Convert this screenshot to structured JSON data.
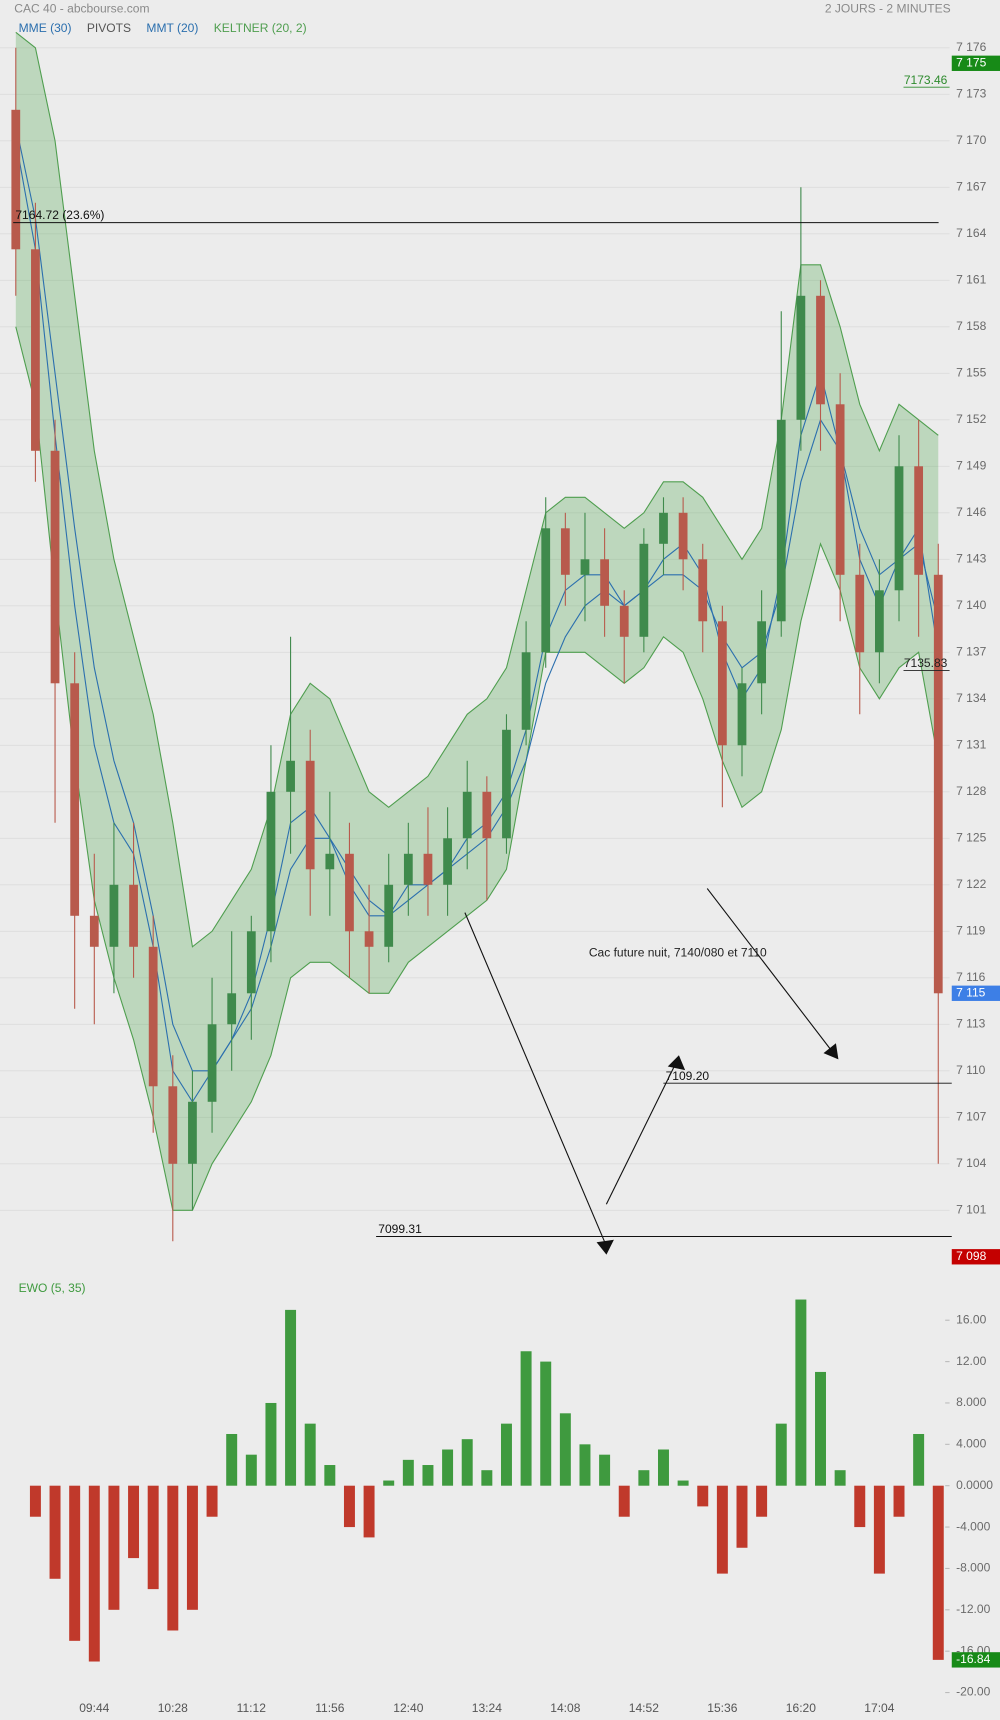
{
  "header": {
    "title": "CAC 40 - abcbourse.com",
    "timeframe": "2 JOURS - 2 MINUTES"
  },
  "chart_data": [
    {
      "type": "candlestick",
      "categories": [
        null,
        null,
        null,
        null,
        "09:44",
        null,
        null,
        null,
        "10:28",
        null,
        null,
        null,
        "11:12",
        null,
        null,
        null,
        "11:56",
        null,
        null,
        null,
        "12:40",
        null,
        null,
        null,
        "13:24",
        null,
        null,
        null,
        "14:08",
        null,
        null,
        null,
        "14:52",
        null,
        null,
        null,
        "15:36",
        null,
        null,
        null,
        "16:20",
        null,
        null,
        null,
        "17:04",
        null,
        null,
        null
      ],
      "open": [
        7172,
        7163,
        7150,
        7135,
        7120,
        7118,
        7122,
        7118,
        7109,
        7104,
        7108,
        7113,
        7115,
        7119,
        7128,
        7130,
        7123,
        7124,
        7119,
        7118,
        7122,
        7124,
        7122,
        7125,
        7128,
        7125,
        7132,
        7137,
        7145,
        7142,
        7143,
        7140,
        7138,
        7144,
        7146,
        7143,
        7139,
        7131,
        7135,
        7139,
        7152,
        7160,
        7153,
        7142,
        7137,
        7141,
        7149,
        7142
      ],
      "high": [
        7176,
        7166,
        7152,
        7137,
        7124,
        7126,
        7126,
        7120,
        7111,
        7110,
        7116,
        7119,
        7120,
        7131,
        7138,
        7132,
        7128,
        7126,
        7122,
        7124,
        7126,
        7127,
        7127,
        7130,
        7129,
        7133,
        7139,
        7147,
        7146,
        7146,
        7145,
        7141,
        7145,
        7147,
        7147,
        7144,
        7140,
        7136,
        7141,
        7159,
        7167,
        7161,
        7155,
        7144,
        7143,
        7151,
        7152,
        7144
      ],
      "low": [
        7160,
        7148,
        7126,
        7114,
        7113,
        7115,
        7116,
        7106,
        7099,
        7101,
        7106,
        7110,
        7112,
        7117,
        7124,
        7120,
        7120,
        7116,
        7115,
        7117,
        7120,
        7120,
        7120,
        7123,
        7121,
        7124,
        7131,
        7136,
        7140,
        7139,
        7138,
        7135,
        7137,
        7142,
        7141,
        7137,
        7127,
        7129,
        7133,
        7138,
        7150,
        7150,
        7139,
        7133,
        7135,
        7139,
        7138,
        7104
      ],
      "close": [
        7163,
        7150,
        7135,
        7120,
        7118,
        7122,
        7118,
        7109,
        7104,
        7108,
        7113,
        7115,
        7119,
        7128,
        7130,
        7123,
        7124,
        7119,
        7118,
        7122,
        7124,
        7122,
        7125,
        7128,
        7125,
        7132,
        7137,
        7145,
        7142,
        7143,
        7140,
        7138,
        7144,
        7146,
        7143,
        7139,
        7131,
        7135,
        7139,
        7152,
        7160,
        7153,
        7142,
        7137,
        7141,
        7149,
        7142,
        7115
      ],
      "up_color": "#3f8a4c",
      "down_color": "#b85a4c",
      "series": [
        {
          "name": "MME (30)",
          "color": "#2b6fae",
          "values": [
            7171,
            7165,
            7155,
            7145,
            7136,
            7130,
            7126,
            7120,
            7113,
            7110,
            7110,
            7112,
            7114,
            7118,
            7123,
            7125,
            7125,
            7123,
            7121,
            7120,
            7121,
            7122,
            7123,
            7124,
            7125,
            7127,
            7130,
            7135,
            7138,
            7140,
            7141,
            7140,
            7141,
            7142,
            7142,
            7141,
            7138,
            7136,
            7137,
            7141,
            7148,
            7152,
            7150,
            7145,
            7142,
            7143,
            7144,
            7139
          ]
        },
        {
          "name": "PIVOTS",
          "color": "#555555"
        },
        {
          "name": "MMT (20)",
          "color": "#2b6fae",
          "values": [
            7170,
            7163,
            7151,
            7140,
            7131,
            7126,
            7124,
            7118,
            7110,
            7108,
            7110,
            7112,
            7115,
            7120,
            7126,
            7127,
            7125,
            7122,
            7120,
            7120,
            7122,
            7122,
            7123,
            7125,
            7126,
            7128,
            7132,
            7138,
            7141,
            7142,
            7142,
            7140,
            7141,
            7143,
            7144,
            7142,
            7137,
            7134,
            7136,
            7142,
            7151,
            7155,
            7150,
            7143,
            7140,
            7143,
            7145,
            7137
          ]
        },
        {
          "name": "KELTNER (20, 2)",
          "color": "#4f9e4f",
          "fill": "rgba(80,165,80,0.30)",
          "upper": [
            7177,
            7176,
            7170,
            7160,
            7150,
            7143,
            7138,
            7133,
            7126,
            7118,
            7119,
            7121,
            7123,
            7127,
            7133,
            7135,
            7134,
            7131,
            7128,
            7127,
            7128,
            7129,
            7131,
            7133,
            7134,
            7136,
            7141,
            7146,
            7147,
            7147,
            7146,
            7145,
            7146,
            7148,
            7148,
            7147,
            7145,
            7143,
            7145,
            7152,
            7162,
            7162,
            7158,
            7153,
            7150,
            7153,
            7152,
            7151
          ],
          "lower": [
            7158,
            7153,
            7141,
            7130,
            7121,
            7116,
            7112,
            7107,
            7101,
            7101,
            7104,
            7106,
            7108,
            7111,
            7116,
            7117,
            7117,
            7116,
            7115,
            7115,
            7117,
            7118,
            7119,
            7120,
            7121,
            7123,
            7130,
            7137,
            7137,
            7137,
            7136,
            7135,
            7136,
            7138,
            7137,
            7134,
            7130,
            7127,
            7128,
            7132,
            7139,
            7144,
            7141,
            7136,
            7134,
            7136,
            7137,
            7130
          ]
        }
      ],
      "ylim": [
        7097,
        7178
      ],
      "yticks": [
        {
          "value": 7101,
          "label": "7 101"
        },
        {
          "value": 7104,
          "label": "7 104"
        },
        {
          "value": 7107,
          "label": "7 107"
        },
        {
          "value": 7110,
          "label": "7 110"
        },
        {
          "value": 7113,
          "label": "7 113"
        },
        {
          "value": 7116,
          "label": "7 116"
        },
        {
          "value": 7119,
          "label": "7 119"
        },
        {
          "value": 7122,
          "label": "7 122"
        },
        {
          "value": 7125,
          "label": "7 125"
        },
        {
          "value": 7128,
          "label": "7 128"
        },
        {
          "value": 7131,
          "label": "7 131"
        },
        {
          "value": 7134,
          "label": "7 134"
        },
        {
          "value": 7137,
          "label": "7 137"
        },
        {
          "value": 7140,
          "label": "7 140"
        },
        {
          "value": 7143,
          "label": "7 143"
        },
        {
          "value": 7146,
          "label": "7 146"
        },
        {
          "value": 7149,
          "label": "7 149"
        },
        {
          "value": 7152,
          "label": "7 152"
        },
        {
          "value": 7155,
          "label": "7 155"
        },
        {
          "value": 7158,
          "label": "7 158"
        },
        {
          "value": 7161,
          "label": "7 161"
        },
        {
          "value": 7164,
          "label": "7 164"
        },
        {
          "value": 7167,
          "label": "7 167"
        },
        {
          "value": 7170,
          "label": "7 170"
        },
        {
          "value": 7173,
          "label": "7 173"
        },
        {
          "value": 7176,
          "label": "7 176"
        }
      ],
      "grid": true,
      "levels": [
        {
          "value": 7164.72,
          "label": "7164.72  (23.6%)"
        },
        {
          "value": 7099.31,
          "label": "7099.31"
        },
        {
          "value": 7109.2,
          "label": "7109.20"
        }
      ],
      "price_markers": [
        {
          "value": 7173.46,
          "label": "7173.46",
          "color": "#2e8b2e"
        },
        {
          "value": 7135.83,
          "label": "7135.83",
          "color": "#222222"
        }
      ],
      "badges": [
        {
          "value": 7175,
          "label": "7 175",
          "color": "#178a17"
        },
        {
          "value": 7115,
          "label": "7 115",
          "color": "#3d7fe6"
        },
        {
          "value": 7098,
          "label": "7 098",
          "color": "#c40000"
        }
      ],
      "annotations": [
        "Cac future nuit, 7140/080 et 7110"
      ]
    },
    {
      "type": "bar",
      "title": "EWO (5, 35)",
      "values": [
        null,
        -3,
        -9,
        -15,
        -17,
        -12,
        -7,
        -10,
        -14,
        -12,
        -3,
        5,
        3,
        8,
        17,
        6,
        2,
        -4,
        -5,
        0.5,
        2.5,
        2,
        3.5,
        4.5,
        1.5,
        6,
        13,
        12,
        7,
        4,
        3,
        -3,
        1.5,
        3.5,
        0.5,
        -2,
        -8.5,
        -6,
        -3,
        6,
        18,
        11,
        1.5,
        -4,
        -8.5,
        -3,
        5,
        -16.84
      ],
      "up_color": "#3f9a3f",
      "down_color": "#c0392b",
      "ylim": [
        -20.5,
        20
      ],
      "yticks": [
        {
          "value": 16,
          "label": "16.00"
        },
        {
          "value": 12,
          "label": "12.00"
        },
        {
          "value": 8,
          "label": "8.000"
        },
        {
          "value": 4,
          "label": "4.000"
        },
        {
          "value": 0,
          "label": "0.0000"
        },
        {
          "value": -4,
          "label": "-4.000"
        },
        {
          "value": -8,
          "label": "-8.000"
        },
        {
          "value": -12,
          "label": "-12.00"
        },
        {
          "value": -16,
          "label": "-16.00"
        },
        {
          "value": -20,
          "label": "-20.00"
        }
      ],
      "badges": [
        {
          "value": -16.84,
          "label": "-16.84",
          "color": "#178a17"
        }
      ]
    }
  ]
}
